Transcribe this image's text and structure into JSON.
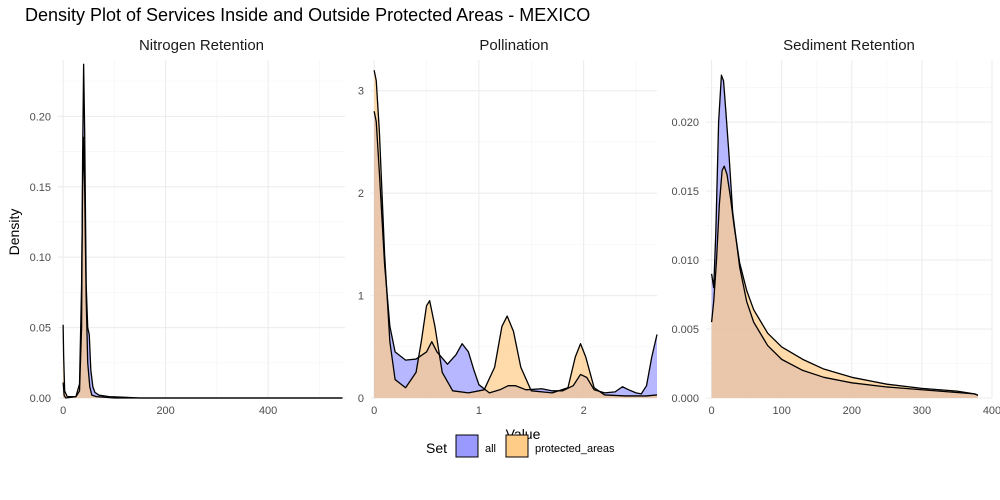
{
  "title": "Density Plot of Services Inside and Outside Protected Areas - MEXICO",
  "xlabel": "Value",
  "ylabel": "Density",
  "legend": {
    "title": "Set",
    "placement": "bottom",
    "entries": [
      {
        "name": "all",
        "fill": "#9999ff"
      },
      {
        "name": "protected_areas",
        "fill": "#ffcc88"
      }
    ]
  },
  "colors": {
    "all_fill": "#9999ff",
    "protected_fill": "#ffcc88",
    "overlap_fill": "#b88a96",
    "line": "#000000",
    "grid": "#ebebeb"
  },
  "chart_data": [
    {
      "type": "area",
      "panel_title": "Nitrogen Retention",
      "xlim": [
        -10,
        550
      ],
      "ylim": [
        0,
        0.24
      ],
      "xticks": [
        0,
        200,
        400
      ],
      "yticks": [
        0.0,
        0.05,
        0.1,
        0.15,
        0.2
      ],
      "ytick_labels": [
        "0.00",
        "0.05",
        "0.10",
        "0.15",
        "0.20"
      ],
      "series": [
        {
          "name": "all",
          "points": [
            [
              0,
              0.011
            ],
            [
              2,
              0.002
            ],
            [
              5,
              0
            ],
            [
              25,
              0.001
            ],
            [
              32,
              0.005
            ],
            [
              36,
              0.05
            ],
            [
              38,
              0.17
            ],
            [
              40,
              0.237
            ],
            [
              42,
              0.19
            ],
            [
              45,
              0.08
            ],
            [
              48,
              0.05
            ],
            [
              51,
              0.045
            ],
            [
              54,
              0.02
            ],
            [
              58,
              0.008
            ],
            [
              62,
              0.004
            ],
            [
              70,
              0.002
            ],
            [
              90,
              0.001
            ],
            [
              150,
              0
            ],
            [
              545,
              0
            ]
          ]
        },
        {
          "name": "protected_areas",
          "points": [
            [
              0,
              0.052
            ],
            [
              1,
              0.03
            ],
            [
              3,
              0.005
            ],
            [
              8,
              0.001
            ],
            [
              25,
              0.001
            ],
            [
              32,
              0.01
            ],
            [
              36,
              0.08
            ],
            [
              38,
              0.15
            ],
            [
              40,
              0.185
            ],
            [
              42,
              0.15
            ],
            [
              45,
              0.07
            ],
            [
              48,
              0.025
            ],
            [
              52,
              0.008
            ],
            [
              56,
              0.002
            ],
            [
              65,
              0.001
            ],
            [
              100,
              0
            ],
            [
              545,
              0
            ]
          ]
        }
      ]
    },
    {
      "type": "area",
      "panel_title": "Pollination",
      "xlim": [
        -0.03,
        2.7
      ],
      "ylim": [
        0,
        3.3
      ],
      "xticks": [
        0,
        1,
        2
      ],
      "yticks": [
        0,
        1,
        2,
        3
      ],
      "ytick_labels": [
        "0",
        "1",
        "2",
        "3"
      ],
      "series": [
        {
          "name": "all",
          "points": [
            [
              0,
              2.8
            ],
            [
              0.02,
              2.7
            ],
            [
              0.05,
              2.2
            ],
            [
              0.1,
              1.3
            ],
            [
              0.15,
              0.7
            ],
            [
              0.2,
              0.45
            ],
            [
              0.3,
              0.37
            ],
            [
              0.4,
              0.38
            ],
            [
              0.5,
              0.45
            ],
            [
              0.55,
              0.55
            ],
            [
              0.6,
              0.45
            ],
            [
              0.7,
              0.33
            ],
            [
              0.78,
              0.42
            ],
            [
              0.84,
              0.53
            ],
            [
              0.9,
              0.45
            ],
            [
              0.95,
              0.28
            ],
            [
              1.0,
              0.13
            ],
            [
              1.1,
              0.05
            ],
            [
              1.2,
              0.08
            ],
            [
              1.28,
              0.12
            ],
            [
              1.35,
              0.12
            ],
            [
              1.45,
              0.08
            ],
            [
              1.6,
              0.09
            ],
            [
              1.7,
              0.07
            ],
            [
              1.8,
              0.07
            ],
            [
              1.9,
              0.12
            ],
            [
              1.97,
              0.23
            ],
            [
              2.03,
              0.2
            ],
            [
              2.1,
              0.08
            ],
            [
              2.2,
              0.05
            ],
            [
              2.3,
              0.06
            ],
            [
              2.37,
              0.11
            ],
            [
              2.43,
              0.08
            ],
            [
              2.5,
              0.05
            ],
            [
              2.55,
              0.04
            ],
            [
              2.6,
              0.12
            ],
            [
              2.65,
              0.4
            ],
            [
              2.7,
              0.62
            ]
          ]
        },
        {
          "name": "protected_areas",
          "points": [
            [
              0,
              3.2
            ],
            [
              0.02,
              3.1
            ],
            [
              0.05,
              2.6
            ],
            [
              0.1,
              1.4
            ],
            [
              0.15,
              0.55
            ],
            [
              0.2,
              0.18
            ],
            [
              0.3,
              0.1
            ],
            [
              0.4,
              0.25
            ],
            [
              0.45,
              0.55
            ],
            [
              0.5,
              0.9
            ],
            [
              0.53,
              0.95
            ],
            [
              0.58,
              0.7
            ],
            [
              0.65,
              0.25
            ],
            [
              0.75,
              0.07
            ],
            [
              0.9,
              0.05
            ],
            [
              1.05,
              0.08
            ],
            [
              1.15,
              0.3
            ],
            [
              1.22,
              0.7
            ],
            [
              1.27,
              0.8
            ],
            [
              1.33,
              0.65
            ],
            [
              1.4,
              0.3
            ],
            [
              1.5,
              0.07
            ],
            [
              1.7,
              0.05
            ],
            [
              1.85,
              0.1
            ],
            [
              1.92,
              0.4
            ],
            [
              1.97,
              0.53
            ],
            [
              2.02,
              0.4
            ],
            [
              2.1,
              0.1
            ],
            [
              2.2,
              0.03
            ],
            [
              2.4,
              0.02
            ],
            [
              2.6,
              0.02
            ],
            [
              2.7,
              0.03
            ]
          ]
        }
      ]
    },
    {
      "type": "area",
      "panel_title": "Sediment Retention",
      "xlim": [
        -8,
        400
      ],
      "ylim": [
        0,
        0.0245
      ],
      "xticks": [
        0,
        100,
        200,
        300,
        400
      ],
      "yticks": [
        0.0,
        0.005,
        0.01,
        0.015,
        0.02
      ],
      "ytick_labels": [
        "0.000",
        "0.005",
        "0.010",
        "0.015",
        "0.020"
      ],
      "series": [
        {
          "name": "all",
          "points": [
            [
              0,
              0.009
            ],
            [
              3,
              0.008
            ],
            [
              6,
              0.012
            ],
            [
              10,
              0.02
            ],
            [
              14,
              0.0234
            ],
            [
              17,
              0.023
            ],
            [
              20,
              0.021
            ],
            [
              25,
              0.0175
            ],
            [
              30,
              0.0135
            ],
            [
              40,
              0.0095
            ],
            [
              50,
              0.007
            ],
            [
              60,
              0.0055
            ],
            [
              80,
              0.0038
            ],
            [
              100,
              0.0028
            ],
            [
              130,
              0.002
            ],
            [
              160,
              0.0015
            ],
            [
              200,
              0.0011
            ],
            [
              250,
              0.0008
            ],
            [
              300,
              0.0006
            ],
            [
              350,
              0.0004
            ],
            [
              375,
              0.0003
            ],
            [
              380,
              0.0002
            ]
          ]
        },
        {
          "name": "protected_areas",
          "points": [
            [
              0,
              0.0055
            ],
            [
              3,
              0.007
            ],
            [
              7,
              0.01
            ],
            [
              11,
              0.014
            ],
            [
              15,
              0.0165
            ],
            [
              18,
              0.0168
            ],
            [
              22,
              0.0162
            ],
            [
              27,
              0.0145
            ],
            [
              32,
              0.0125
            ],
            [
              40,
              0.0098
            ],
            [
              50,
              0.0078
            ],
            [
              60,
              0.0064
            ],
            [
              80,
              0.0047
            ],
            [
              100,
              0.0037
            ],
            [
              130,
              0.0028
            ],
            [
              160,
              0.0021
            ],
            [
              200,
              0.0015
            ],
            [
              250,
              0.001
            ],
            [
              300,
              0.0007
            ],
            [
              350,
              0.0005
            ],
            [
              375,
              0.0003
            ],
            [
              380,
              0.0002
            ]
          ]
        }
      ]
    }
  ]
}
